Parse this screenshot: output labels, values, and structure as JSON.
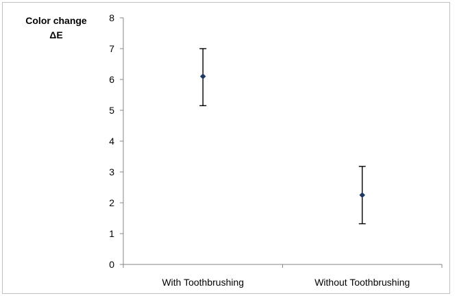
{
  "chart_data": {
    "type": "scatter",
    "title": "",
    "xlabel": "",
    "ylabel_lines": [
      "Color change",
      "ΔE"
    ],
    "categories": [
      "With Toothbrushing",
      "Without Toothbrushing"
    ],
    "y_ticks": [
      0,
      1,
      2,
      3,
      4,
      5,
      6,
      7,
      8
    ],
    "ylim": [
      0,
      8
    ],
    "grid": false,
    "legend": "none",
    "series": [
      {
        "values": [
          6.1,
          2.25
        ],
        "error_low": [
          5.15,
          1.32
        ],
        "error_high": [
          7.0,
          3.18
        ],
        "marker": "diamond",
        "color": "#1f3864"
      }
    ]
  }
}
